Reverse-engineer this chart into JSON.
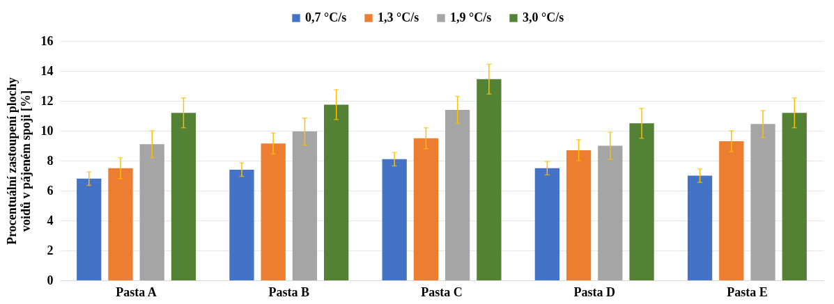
{
  "chart_data": {
    "type": "bar",
    "ylabel": "Procentuální zastoupení plochy voidů v pájeném spoji [%]",
    "categories": [
      "Pasta A",
      "Pasta B",
      "Pasta C",
      "Pasta D",
      "Pasta E"
    ],
    "series": [
      {
        "name": "0,7 °C/s",
        "color": "#4472c4",
        "values": [
          6.8,
          7.4,
          8.1,
          7.5,
          7.0
        ],
        "errors": [
          0.45,
          0.45,
          0.45,
          0.45,
          0.45
        ]
      },
      {
        "name": "1,3 °C/s",
        "color": "#ed7d31",
        "values": [
          7.5,
          9.15,
          9.5,
          8.7,
          9.3
        ],
        "errors": [
          0.7,
          0.7,
          0.7,
          0.7,
          0.7
        ]
      },
      {
        "name": "1,9 °C/s",
        "color": "#a5a5a5",
        "values": [
          9.1,
          9.95,
          11.4,
          9.0,
          10.45
        ],
        "errors": [
          0.9,
          0.9,
          0.9,
          0.9,
          0.9
        ]
      },
      {
        "name": "3,0 °C/s",
        "color": "#548235",
        "values": [
          11.2,
          11.75,
          13.45,
          10.5,
          11.2
        ],
        "errors": [
          1.0,
          1.0,
          1.0,
          1.0,
          1.0
        ]
      }
    ],
    "ylim": [
      0,
      16
    ],
    "yticks": [
      0,
      2,
      4,
      6,
      8,
      10,
      12,
      14,
      16
    ],
    "grid": "y",
    "legend": "top"
  }
}
